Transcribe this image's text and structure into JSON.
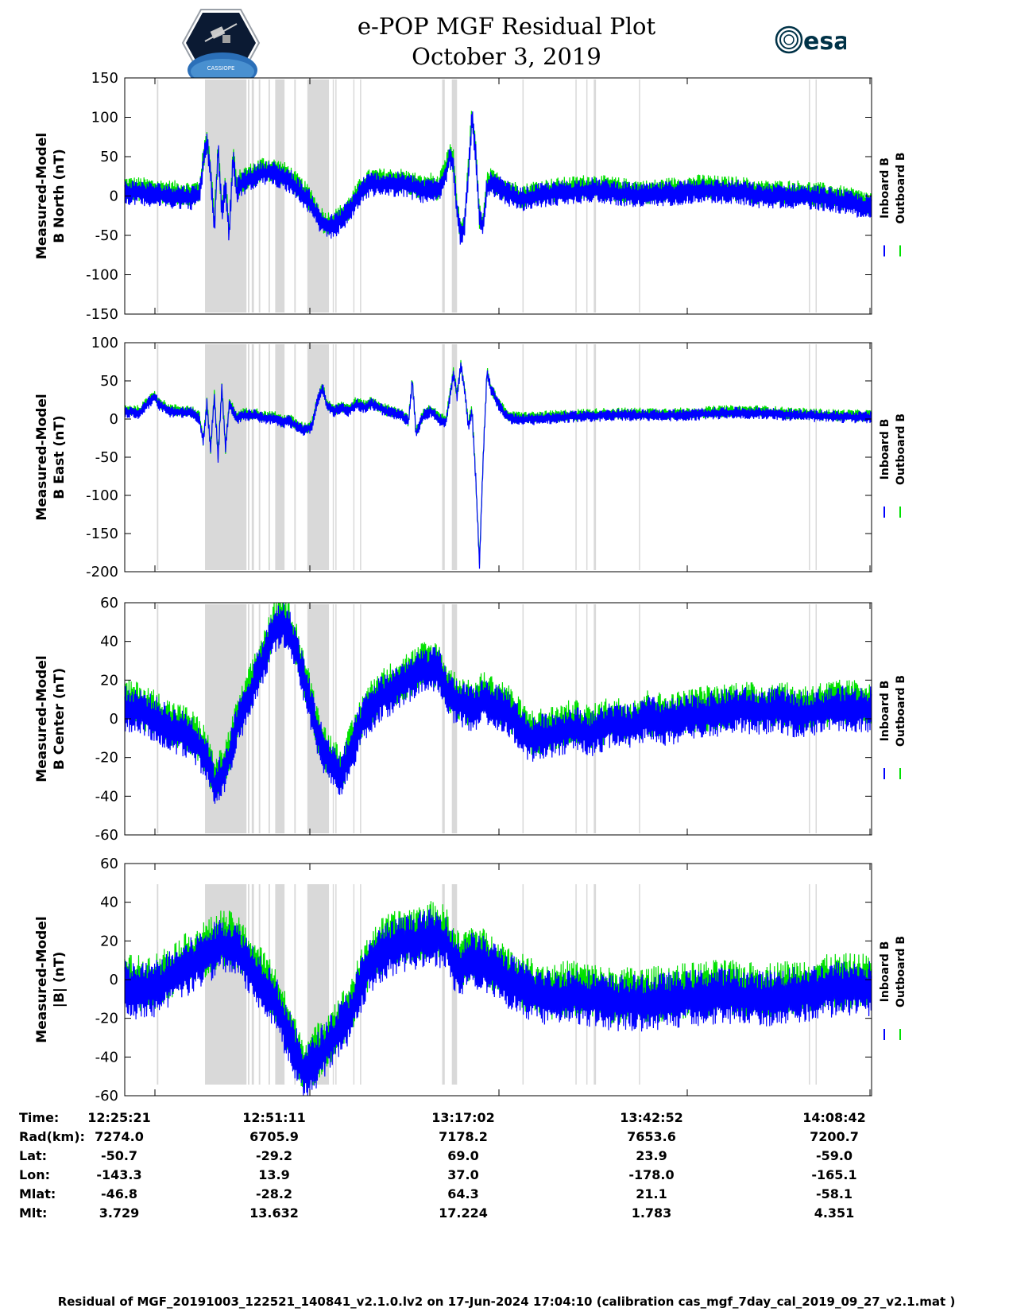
{
  "header": {
    "title_line1": "e-POP MGF Residual Plot",
    "title_line2": "October 3, 2019",
    "logo_left_icon": "cassiope-mission-badge",
    "logo_left_text": "CASSIOPE",
    "logo_right_icon": "esa-logo",
    "logo_right_text": "esa"
  },
  "colors": {
    "inboard": "#0000ff",
    "outboard": "#00e000",
    "shade": "#d9d9d9"
  },
  "chart_data": [
    {
      "type": "line",
      "ylabel_line1": "Measured-Model",
      "ylabel_line2": "B North (nT)",
      "ylim": [
        -150,
        150
      ],
      "yticks": [
        -150,
        -100,
        -50,
        0,
        50,
        100,
        150
      ],
      "x_range_min": [
        0,
        103.35
      ],
      "series": [
        {
          "name": "Inboard B"
        },
        {
          "name": "Outboard B"
        }
      ],
      "envelope": [
        [
          0,
          5
        ],
        [
          4,
          4
        ],
        [
          8,
          2
        ],
        [
          12,
          0
        ],
        [
          16,
          -1
        ],
        [
          18,
          -2
        ],
        [
          20,
          2
        ],
        [
          21,
          40
        ],
        [
          22,
          70
        ],
        [
          23,
          30
        ],
        [
          24,
          -40
        ],
        [
          25,
          60
        ],
        [
          26,
          -20
        ],
        [
          27,
          10
        ],
        [
          28,
          -50
        ],
        [
          29,
          50
        ],
        [
          30,
          5
        ],
        [
          31,
          15
        ],
        [
          33,
          20
        ],
        [
          35,
          25
        ],
        [
          37,
          30
        ],
        [
          40,
          28
        ],
        [
          42,
          25
        ],
        [
          44,
          20
        ],
        [
          46,
          10
        ],
        [
          48,
          0
        ],
        [
          50,
          -10
        ],
        [
          51,
          -20
        ],
        [
          52,
          -30
        ],
        [
          54,
          -40
        ],
        [
          56,
          -38
        ],
        [
          58,
          -30
        ],
        [
          60,
          -20
        ],
        [
          62,
          -5
        ],
        [
          64,
          10
        ],
        [
          66,
          15
        ],
        [
          70,
          15
        ],
        [
          74,
          15
        ],
        [
          78,
          10
        ],
        [
          80,
          5
        ],
        [
          82,
          10
        ],
        [
          84,
          5
        ],
        [
          86,
          30
        ],
        [
          87,
          50
        ],
        [
          88,
          40
        ],
        [
          89,
          -20
        ],
        [
          90,
          -50
        ],
        [
          91,
          -40
        ],
        [
          92,
          30
        ],
        [
          93,
          100
        ],
        [
          94,
          50
        ],
        [
          95,
          -30
        ],
        [
          96,
          -40
        ],
        [
          97,
          10
        ],
        [
          98,
          15
        ],
        [
          100,
          10
        ],
        [
          102,
          5
        ],
        [
          104,
          0
        ],
        [
          106,
          -5
        ],
        [
          108,
          -3
        ],
        [
          110,
          0
        ],
        [
          115,
          3
        ],
        [
          120,
          5
        ],
        [
          125,
          8
        ],
        [
          130,
          5
        ],
        [
          135,
          2
        ],
        [
          140,
          0
        ],
        [
          145,
          3
        ],
        [
          150,
          5
        ],
        [
          155,
          8
        ],
        [
          160,
          5
        ],
        [
          165,
          5
        ],
        [
          170,
          0
        ],
        [
          175,
          0
        ],
        [
          180,
          0
        ],
        [
          185,
          -2
        ],
        [
          190,
          -5
        ],
        [
          195,
          -10
        ],
        [
          200,
          -15
        ]
      ],
      "noise": 12
    },
    {
      "type": "line",
      "ylabel_line1": "Measured-Model",
      "ylabel_line2": "B East (nT)",
      "ylim": [
        -200,
        100
      ],
      "yticks": [
        -200,
        -150,
        -100,
        -50,
        0,
        50,
        100
      ],
      "series": [
        {
          "name": "Inboard B"
        },
        {
          "name": "Outboard B"
        }
      ],
      "envelope": [
        [
          0,
          10
        ],
        [
          4,
          8
        ],
        [
          8,
          30
        ],
        [
          9,
          20
        ],
        [
          12,
          10
        ],
        [
          18,
          8
        ],
        [
          20,
          0
        ],
        [
          21,
          -30
        ],
        [
          22,
          20
        ],
        [
          23,
          -40
        ],
        [
          24,
          30
        ],
        [
          25,
          -50
        ],
        [
          26,
          40
        ],
        [
          27,
          -40
        ],
        [
          28,
          20
        ],
        [
          30,
          0
        ],
        [
          32,
          5
        ],
        [
          35,
          5
        ],
        [
          38,
          0
        ],
        [
          40,
          2
        ],
        [
          42,
          -5
        ],
        [
          44,
          -2
        ],
        [
          46,
          -10
        ],
        [
          48,
          -15
        ],
        [
          50,
          -10
        ],
        [
          52,
          30
        ],
        [
          53,
          40
        ],
        [
          54,
          20
        ],
        [
          56,
          10
        ],
        [
          58,
          15
        ],
        [
          60,
          10
        ],
        [
          62,
          20
        ],
        [
          64,
          15
        ],
        [
          66,
          20
        ],
        [
          70,
          10
        ],
        [
          74,
          5
        ],
        [
          76,
          -5
        ],
        [
          77,
          50
        ],
        [
          78,
          -20
        ],
        [
          80,
          5
        ],
        [
          82,
          10
        ],
        [
          84,
          0
        ],
        [
          86,
          -5
        ],
        [
          88,
          60
        ],
        [
          89,
          30
        ],
        [
          90,
          70
        ],
        [
          91,
          40
        ],
        [
          92,
          -10
        ],
        [
          93,
          10
        ],
        [
          94,
          -80
        ],
        [
          95,
          -190
        ],
        [
          96,
          -50
        ],
        [
          97,
          60
        ],
        [
          98,
          40
        ],
        [
          100,
          20
        ],
        [
          102,
          5
        ],
        [
          104,
          0
        ],
        [
          110,
          0
        ],
        [
          120,
          3
        ],
        [
          130,
          5
        ],
        [
          140,
          5
        ],
        [
          150,
          5
        ],
        [
          160,
          8
        ],
        [
          170,
          8
        ],
        [
          180,
          5
        ],
        [
          190,
          3
        ],
        [
          200,
          2
        ]
      ],
      "noise": 6
    },
    {
      "type": "line",
      "ylabel_line1": "Measured-Model",
      "ylabel_line2": "B Center (nT)",
      "ylim": [
        -60,
        60
      ],
      "yticks": [
        -60,
        -40,
        -20,
        0,
        20,
        40,
        60
      ],
      "series": [
        {
          "name": "Inboard B"
        },
        {
          "name": "Outboard B"
        }
      ],
      "envelope": [
        [
          0,
          5
        ],
        [
          4,
          4
        ],
        [
          8,
          0
        ],
        [
          12,
          -5
        ],
        [
          16,
          -8
        ],
        [
          18,
          -10
        ],
        [
          20,
          -15
        ],
        [
          22,
          -20
        ],
        [
          24,
          -35
        ],
        [
          26,
          -30
        ],
        [
          28,
          -20
        ],
        [
          30,
          -5
        ],
        [
          32,
          5
        ],
        [
          34,
          15
        ],
        [
          36,
          25
        ],
        [
          38,
          35
        ],
        [
          40,
          45
        ],
        [
          42,
          50
        ],
        [
          44,
          45
        ],
        [
          46,
          35
        ],
        [
          48,
          20
        ],
        [
          50,
          5
        ],
        [
          52,
          -10
        ],
        [
          54,
          -20
        ],
        [
          56,
          -25
        ],
        [
          58,
          -30
        ],
        [
          60,
          -20
        ],
        [
          62,
          -10
        ],
        [
          64,
          0
        ],
        [
          66,
          5
        ],
        [
          68,
          10
        ],
        [
          70,
          12
        ],
        [
          72,
          15
        ],
        [
          74,
          18
        ],
        [
          76,
          20
        ],
        [
          78,
          22
        ],
        [
          80,
          25
        ],
        [
          82,
          25
        ],
        [
          84,
          25
        ],
        [
          86,
          15
        ],
        [
          88,
          10
        ],
        [
          90,
          8
        ],
        [
          92,
          5
        ],
        [
          94,
          5
        ],
        [
          96,
          10
        ],
        [
          98,
          8
        ],
        [
          100,
          5
        ],
        [
          102,
          5
        ],
        [
          104,
          0
        ],
        [
          106,
          -5
        ],
        [
          108,
          -10
        ],
        [
          110,
          -10
        ],
        [
          115,
          -8
        ],
        [
          120,
          -5
        ],
        [
          125,
          -8
        ],
        [
          130,
          -3
        ],
        [
          135,
          -5
        ],
        [
          140,
          0
        ],
        [
          145,
          -2
        ],
        [
          150,
          0
        ],
        [
          155,
          2
        ],
        [
          160,
          3
        ],
        [
          165,
          5
        ],
        [
          170,
          3
        ],
        [
          175,
          5
        ],
        [
          180,
          2
        ],
        [
          190,
          5
        ],
        [
          200,
          5
        ]
      ],
      "noise": 9
    },
    {
      "type": "line",
      "ylabel_line1": "Measured-Model",
      "ylabel_line2": "|B| (nT)",
      "ylim": [
        -60,
        60
      ],
      "yticks": [
        -60,
        -40,
        -20,
        0,
        20,
        40,
        60
      ],
      "series": [
        {
          "name": "Inboard B"
        },
        {
          "name": "Outboard B"
        }
      ],
      "envelope": [
        [
          0,
          -5
        ],
        [
          4,
          -6
        ],
        [
          8,
          -5
        ],
        [
          12,
          0
        ],
        [
          16,
          5
        ],
        [
          20,
          10
        ],
        [
          24,
          15
        ],
        [
          26,
          18
        ],
        [
          28,
          17
        ],
        [
          30,
          15
        ],
        [
          32,
          10
        ],
        [
          34,
          5
        ],
        [
          36,
          0
        ],
        [
          38,
          -5
        ],
        [
          40,
          -10
        ],
        [
          42,
          -20
        ],
        [
          44,
          -30
        ],
        [
          46,
          -40
        ],
        [
          48,
          -48
        ],
        [
          50,
          -45
        ],
        [
          52,
          -40
        ],
        [
          54,
          -35
        ],
        [
          56,
          -30
        ],
        [
          58,
          -25
        ],
        [
          60,
          -20
        ],
        [
          62,
          -10
        ],
        [
          64,
          0
        ],
        [
          66,
          8
        ],
        [
          68,
          12
        ],
        [
          70,
          15
        ],
        [
          74,
          18
        ],
        [
          78,
          20
        ],
        [
          82,
          22
        ],
        [
          86,
          20
        ],
        [
          88,
          10
        ],
        [
          90,
          5
        ],
        [
          92,
          10
        ],
        [
          94,
          10
        ],
        [
          96,
          8
        ],
        [
          98,
          5
        ],
        [
          100,
          5
        ],
        [
          102,
          0
        ],
        [
          104,
          -2
        ],
        [
          106,
          -5
        ],
        [
          110,
          -8
        ],
        [
          115,
          -10
        ],
        [
          120,
          -8
        ],
        [
          125,
          -10
        ],
        [
          130,
          -12
        ],
        [
          140,
          -12
        ],
        [
          150,
          -10
        ],
        [
          160,
          -8
        ],
        [
          170,
          -10
        ],
        [
          180,
          -8
        ],
        [
          190,
          -5
        ],
        [
          200,
          -5
        ]
      ],
      "noise": 11
    }
  ],
  "shaded_intervals": [
    [
      8.6,
      9.0
    ],
    [
      21.5,
      32.6
    ],
    [
      33.0,
      33.4
    ],
    [
      34.0,
      34.6
    ],
    [
      35.9,
      36.3
    ],
    [
      38.5,
      38.9
    ],
    [
      40.3,
      42.8
    ],
    [
      45.4,
      45.8
    ],
    [
      48.9,
      54.7
    ],
    [
      55.7,
      55.9
    ],
    [
      56.4,
      56.7
    ],
    [
      61.2,
      61.5
    ],
    [
      63.0,
      63.3
    ],
    [
      85.0,
      85.7
    ],
    [
      87.6,
      89.0
    ],
    [
      106.5,
      106.8
    ],
    [
      120.7,
      121.0
    ],
    [
      123.6,
      123.9
    ],
    [
      125.6,
      126.2
    ],
    [
      137.7,
      138.0
    ],
    [
      183.2,
      183.5
    ],
    [
      185.0,
      185.3
    ]
  ],
  "time_axis": {
    "time_label": "Time:",
    "rad_label": "Rad(km):",
    "lat_label": "Lat:",
    "lon_label": "Lon:",
    "mlat_label": "Mlat:",
    "mlt_label": "Mlt:",
    "ticks": [
      {
        "time": "12:25:21",
        "rad": "7274.0",
        "lat": "-50.7",
        "lon": "-143.3",
        "mlat": "-46.8",
        "mlt": "3.729"
      },
      {
        "time": "12:51:11",
        "rad": "6705.9",
        "lat": "-29.2",
        "lon": "13.9",
        "mlat": "-28.2",
        "mlt": "13.632"
      },
      {
        "time": "13:17:02",
        "rad": "7178.2",
        "lat": "69.0",
        "lon": "37.0",
        "mlat": "64.3",
        "mlt": "17.224"
      },
      {
        "time": "13:42:52",
        "rad": "7653.6",
        "lat": "23.9",
        "lon": "-178.0",
        "mlat": "21.1",
        "mlt": "1.783"
      },
      {
        "time": "14:08:42",
        "rad": "7200.7",
        "lat": "-59.0",
        "lon": "-165.1",
        "mlat": "-58.1",
        "mlt": "4.351"
      }
    ]
  },
  "footer": "Residual of MGF_20191003_122521_140841_v2.1.0.lv2 on 17-Jun-2024 17:04:10 (calibration cas_mgf_7day_cal_2019_09_27_v2.1.mat )"
}
